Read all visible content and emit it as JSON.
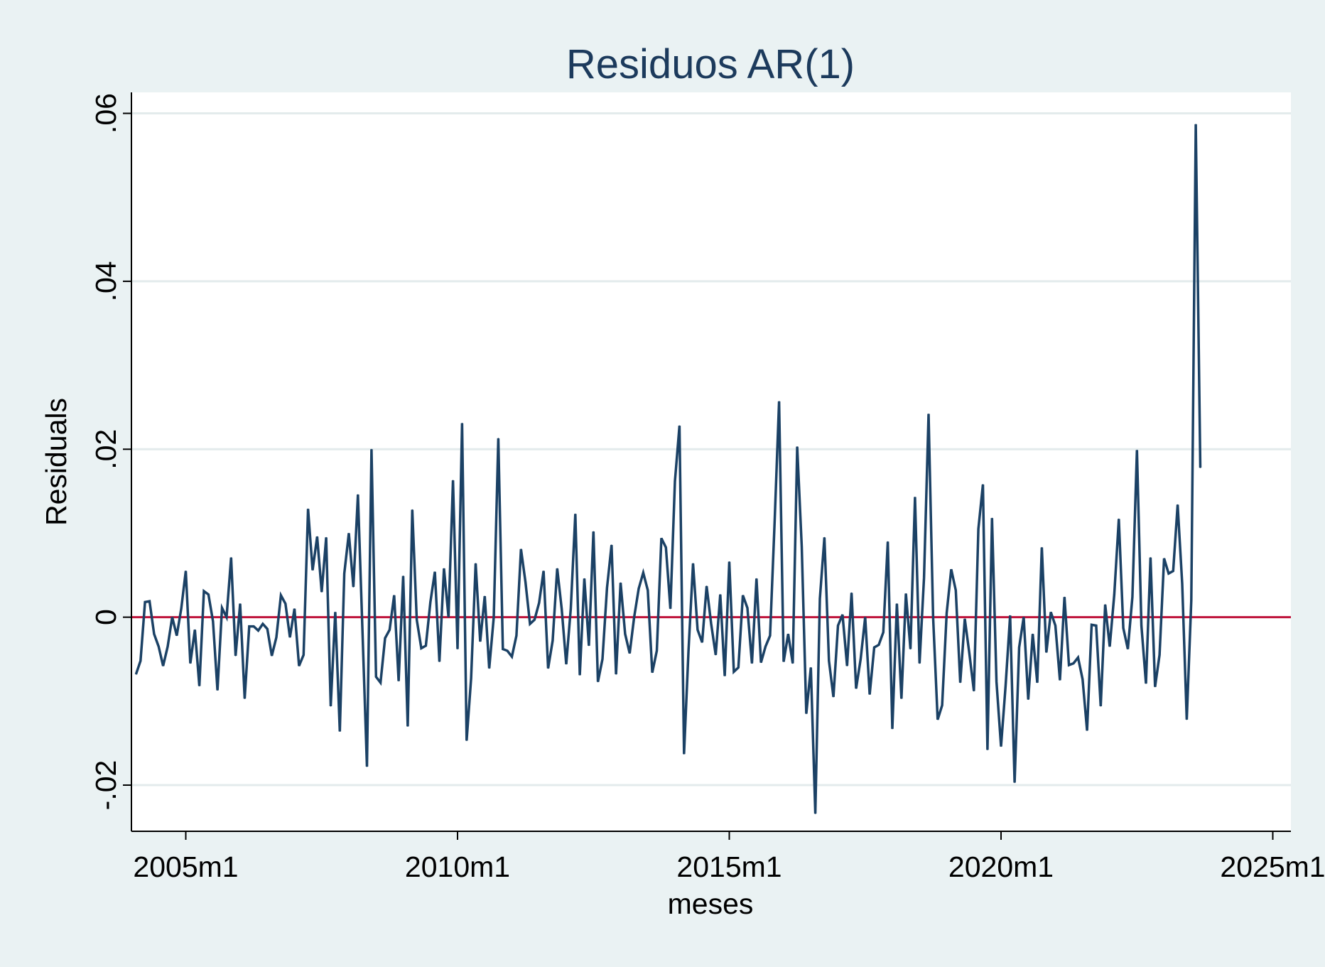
{
  "chart_data": {
    "type": "line",
    "title": "Residuos AR(1)",
    "xlabel": "meses",
    "ylabel": "Residuals",
    "x_start": "2004m2",
    "x_end": "2023m9",
    "x_ticks": [
      "2005m1",
      "2010m1",
      "2015m1",
      "2020m1",
      "2025m1"
    ],
    "x_range": [
      "2004m1",
      "2025m5"
    ],
    "y_ticks": [
      "-.02",
      "0",
      ".02",
      ".04",
      ".06"
    ],
    "y_range": [
      -0.0255,
      0.0625
    ],
    "grid": true,
    "reference_line": {
      "y": 0,
      "color": "#c0143c"
    },
    "colors": {
      "series": "#1b4165",
      "reference": "#c0143c",
      "background": "#eaf2f3",
      "plot_area": "#ffffff"
    },
    "series": [
      {
        "values": [
          -0.0068,
          -0.0052,
          0.0018,
          0.0019,
          -0.002,
          -0.0035,
          -0.0058,
          -0.0035,
          0.0,
          -0.0022,
          0.001,
          0.0055,
          -0.0055,
          -0.0015,
          -0.0082,
          0.0031,
          0.0027,
          -0.0005,
          -0.0087,
          0.0011,
          0.0,
          0.0071,
          -0.0046,
          0.0016,
          -0.0097,
          -0.0011,
          -0.0011,
          -0.0016,
          -0.0008,
          -0.0014,
          -0.0046,
          -0.0024,
          0.0026,
          0.0016,
          -0.0024,
          0.001,
          -0.0058,
          -0.0045,
          0.0129,
          0.0056,
          0.0096,
          0.003,
          0.0095,
          -0.0106,
          0.0006,
          -0.0136,
          0.0052,
          0.01,
          0.0036,
          0.0146,
          -0.0014,
          -0.0178,
          0.02,
          -0.0071,
          -0.0078,
          -0.0025,
          -0.0015,
          0.0026,
          -0.0076,
          0.0049,
          -0.013,
          0.0128,
          -0.0003,
          -0.0037,
          -0.0034,
          0.0018,
          0.0054,
          -0.0053,
          0.0058,
          0.0,
          0.0163,
          -0.0038,
          0.0231,
          -0.0147,
          -0.0073,
          0.0064,
          -0.0029,
          0.0025,
          -0.0061,
          0.0,
          0.0213,
          -0.0038,
          -0.004,
          -0.0047,
          -0.0022,
          0.0081,
          0.0042,
          -0.0008,
          -0.0003,
          0.0017,
          0.0055,
          -0.0061,
          -0.0028,
          0.0058,
          0.001,
          -0.0056,
          0.001,
          0.0123,
          -0.0069,
          0.0046,
          -0.0034,
          0.0102,
          -0.0077,
          -0.005,
          0.0035,
          0.0086,
          -0.0068,
          0.0041,
          -0.002,
          -0.0043,
          0.0,
          0.0034,
          0.0053,
          0.0032,
          -0.0066,
          -0.004,
          0.0094,
          0.0083,
          0.001,
          0.0162,
          0.0228,
          -0.0163,
          -0.004,
          0.0064,
          -0.0015,
          -0.003,
          0.0037,
          -0.0008,
          -0.0045,
          0.0027,
          -0.007,
          0.0066,
          -0.0065,
          -0.006,
          0.0026,
          0.0011,
          -0.0055,
          0.0046,
          -0.0054,
          -0.0035,
          -0.0022,
          0.0113,
          0.0257,
          -0.0053,
          -0.002,
          -0.0055,
          0.0203,
          0.0084,
          -0.0115,
          -0.006,
          -0.0234,
          0.0022,
          0.0095,
          -0.0052,
          -0.0095,
          -0.001,
          0.0003,
          -0.0058,
          0.0029,
          -0.0085,
          -0.005,
          0.0,
          -0.0092,
          -0.0036,
          -0.0033,
          -0.0018,
          0.009,
          -0.0133,
          0.0016,
          -0.0097,
          0.0028,
          -0.0038,
          0.0143,
          -0.0055,
          0.0047,
          0.0242,
          0.0,
          -0.0122,
          -0.0105,
          0.0005,
          0.0057,
          0.0032,
          -0.0078,
          -0.0002,
          -0.0043,
          -0.0088,
          0.0105,
          0.0158,
          -0.0158,
          0.0118,
          -0.0077,
          -0.0154,
          -0.0082,
          0.0002,
          -0.0197,
          -0.0036,
          0.0,
          -0.0098,
          -0.002,
          -0.0078,
          0.0083,
          -0.0042,
          0.0006,
          -0.001,
          -0.0075,
          0.0024,
          -0.0057,
          -0.0055,
          -0.0048,
          -0.0074,
          -0.0135,
          -0.0009,
          -0.001,
          -0.0106,
          0.0015,
          -0.0035,
          0.0027,
          0.0117,
          -0.0013,
          -0.0038,
          0.0024,
          0.0199,
          -0.001,
          -0.0079,
          0.0071,
          -0.0083,
          -0.0045,
          0.007,
          0.0052,
          0.0055,
          0.0134,
          0.004,
          -0.0122,
          0.002,
          0.0587,
          0.0178
        ]
      }
    ]
  }
}
